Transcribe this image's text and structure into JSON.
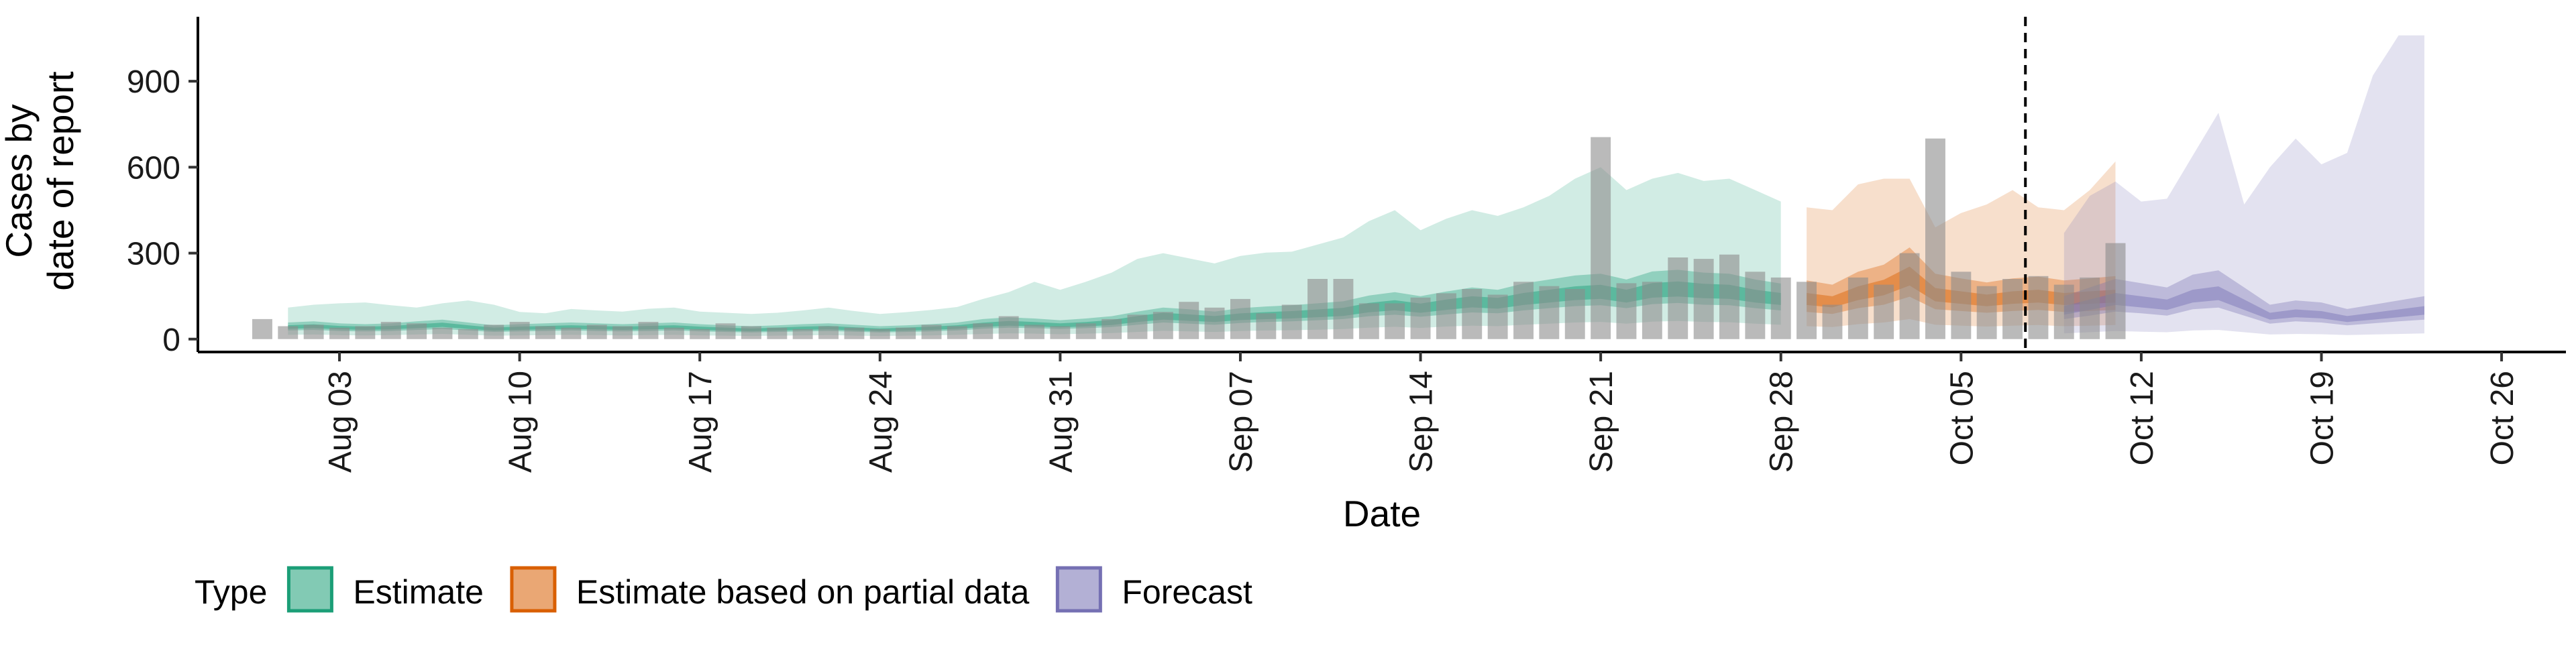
{
  "chart_data": {
    "type": "area",
    "xlabel": "Date",
    "ylabel_lines": [
      "Cases by",
      "date of report"
    ],
    "y_ticks": [
      0,
      300,
      600,
      900
    ],
    "ylim": [
      -45,
      1125
    ],
    "x_ticks": [
      {
        "label": "Aug 03",
        "day": 3
      },
      {
        "label": "Aug 10",
        "day": 10
      },
      {
        "label": "Aug 17",
        "day": 17
      },
      {
        "label": "Aug 24",
        "day": 24
      },
      {
        "label": "Aug 31",
        "day": 31
      },
      {
        "label": "Sep 07",
        "day": 38
      },
      {
        "label": "Sep 14",
        "day": 45
      },
      {
        "label": "Sep 21",
        "day": 52
      },
      {
        "label": "Sep 28",
        "day": 59
      },
      {
        "label": "Oct 05",
        "day": 66
      },
      {
        "label": "Oct 12",
        "day": 73
      },
      {
        "label": "Oct 19",
        "day": 80
      },
      {
        "label": "Oct 26",
        "day": 87
      }
    ],
    "xlim_days": [
      -2.5,
      89.5
    ],
    "vline_day": 68.5,
    "grid": false,
    "legend_position": "bottom",
    "legend": {
      "title": "Type",
      "items": [
        {
          "label": "Estimate",
          "color": "#1b9e77"
        },
        {
          "label": "Estimate based on partial data",
          "color": "#d95f02"
        },
        {
          "label": "Forecast",
          "color": "#7570b3"
        }
      ]
    },
    "colors": {
      "bars": "#8c8c8c",
      "vline": "#000000"
    },
    "series": [
      {
        "type": "Estimate",
        "color": "#1b9e77",
        "start_day": 1,
        "median": [
          42,
          45,
          40,
          38,
          40,
          45,
          50,
          42,
          35,
          38,
          40,
          42,
          40,
          38,
          40,
          42,
          38,
          35,
          32,
          35,
          38,
          40,
          36,
          32,
          35,
          38,
          42,
          50,
          55,
          52,
          48,
          52,
          58,
          70,
          80,
          75,
          70,
          78,
          82,
          85,
          90,
          95,
          110,
          118,
          108,
          120,
          130,
          125,
          140,
          150,
          160,
          165,
          150,
          170,
          175,
          168,
          165,
          150,
          140
        ],
        "lower50": [
          30,
          32,
          28,
          27,
          28,
          32,
          35,
          30,
          25,
          27,
          28,
          30,
          28,
          27,
          28,
          30,
          27,
          25,
          23,
          25,
          27,
          28,
          26,
          23,
          25,
          27,
          30,
          36,
          40,
          38,
          35,
          38,
          42,
          50,
          58,
          54,
          50,
          56,
          60,
          62,
          66,
          70,
          80,
          85,
          78,
          86,
          93,
          90,
          100,
          108,
          115,
          118,
          108,
          122,
          126,
          120,
          118,
          108,
          100
        ],
        "upper50": [
          58,
          62,
          55,
          52,
          55,
          62,
          68,
          58,
          48,
          52,
          55,
          58,
          55,
          52,
          55,
          58,
          52,
          48,
          45,
          48,
          52,
          55,
          50,
          45,
          48,
          52,
          58,
          70,
          76,
          72,
          66,
          72,
          80,
          96,
          110,
          104,
          96,
          108,
          114,
          118,
          125,
          132,
          152,
          164,
          150,
          166,
          180,
          172,
          194,
          208,
          222,
          228,
          208,
          236,
          242,
          232,
          228,
          208,
          194
        ],
        "lower90": [
          15,
          16,
          14,
          13,
          14,
          16,
          18,
          15,
          12,
          13,
          14,
          15,
          14,
          13,
          14,
          15,
          13,
          12,
          11,
          12,
          13,
          14,
          12,
          11,
          12,
          13,
          15,
          18,
          20,
          19,
          17,
          19,
          21,
          25,
          29,
          27,
          25,
          28,
          30,
          31,
          33,
          35,
          40,
          43,
          39,
          44,
          47,
          45,
          50,
          54,
          58,
          60,
          54,
          61,
          63,
          60,
          59,
          54,
          50
        ],
        "upper90": [
          110,
          120,
          125,
          128,
          118,
          110,
          125,
          135,
          120,
          95,
          90,
          105,
          100,
          96,
          106,
          110,
          96,
          92,
          88,
          92,
          100,
          110,
          98,
          88,
          94,
          102,
          112,
          140,
          164,
          200,
          172,
          200,
          232,
          280,
          300,
          282,
          264,
          290,
          302,
          305,
          330,
          355,
          412,
          450,
          380,
          420,
          450,
          430,
          460,
          500,
          560,
          600,
          520,
          560,
          580,
          552,
          560,
          520,
          480
        ]
      },
      {
        "type": "Estimate based on partial data",
        "color": "#d95f02",
        "start_day": 60,
        "median": [
          140,
          130,
          160,
          180,
          220,
          155,
          145,
          135,
          145,
          150,
          140,
          145,
          150
        ],
        "lower50": [
          95,
          88,
          108,
          120,
          148,
          104,
          98,
          92,
          98,
          102,
          95,
          98,
          102
        ],
        "upper50": [
          205,
          190,
          235,
          260,
          320,
          228,
          212,
          198,
          212,
          218,
          205,
          212,
          220
        ],
        "lower90": [
          45,
          42,
          52,
          58,
          70,
          50,
          47,
          44,
          47,
          49,
          45,
          47,
          49
        ],
        "upper90": [
          460,
          450,
          540,
          560,
          560,
          390,
          440,
          470,
          520,
          460,
          450,
          520,
          620
        ]
      },
      {
        "type": "Forecast",
        "color": "#7570b3",
        "start_day": 70,
        "median": [
          100,
          120,
          140,
          130,
          120,
          150,
          160,
          120,
          80,
          90,
          85,
          70,
          80,
          90,
          100
        ],
        "lower50": [
          70,
          82,
          96,
          90,
          82,
          104,
          110,
          82,
          54,
          62,
          58,
          48,
          55,
          62,
          68
        ],
        "upper50": [
          150,
          180,
          210,
          195,
          180,
          225,
          240,
          180,
          120,
          135,
          128,
          105,
          120,
          135,
          150
        ],
        "lower90": [
          20,
          24,
          28,
          26,
          24,
          30,
          32,
          24,
          16,
          18,
          17,
          14,
          16,
          18,
          20
        ],
        "upper90": [
          370,
          500,
          550,
          480,
          490,
          640,
          790,
          470,
          600,
          700,
          610,
          650,
          920,
          1060,
          1060
        ]
      }
    ],
    "bars": {
      "start_day": 0,
      "values": [
        70,
        45,
        50,
        40,
        45,
        60,
        55,
        40,
        35,
        50,
        60,
        45,
        40,
        50,
        45,
        60,
        40,
        35,
        55,
        45,
        40,
        35,
        45,
        40,
        35,
        40,
        50,
        45,
        55,
        80,
        50,
        45,
        55,
        70,
        85,
        95,
        130,
        110,
        140,
        90,
        120,
        210,
        210,
        125,
        125,
        145,
        160,
        175,
        155,
        200,
        185,
        175,
        705,
        195,
        200,
        285,
        280,
        295,
        235,
        215,
        200,
        120,
        215,
        190,
        300,
        700,
        235,
        185,
        210,
        220,
        190,
        215,
        335
      ]
    }
  }
}
